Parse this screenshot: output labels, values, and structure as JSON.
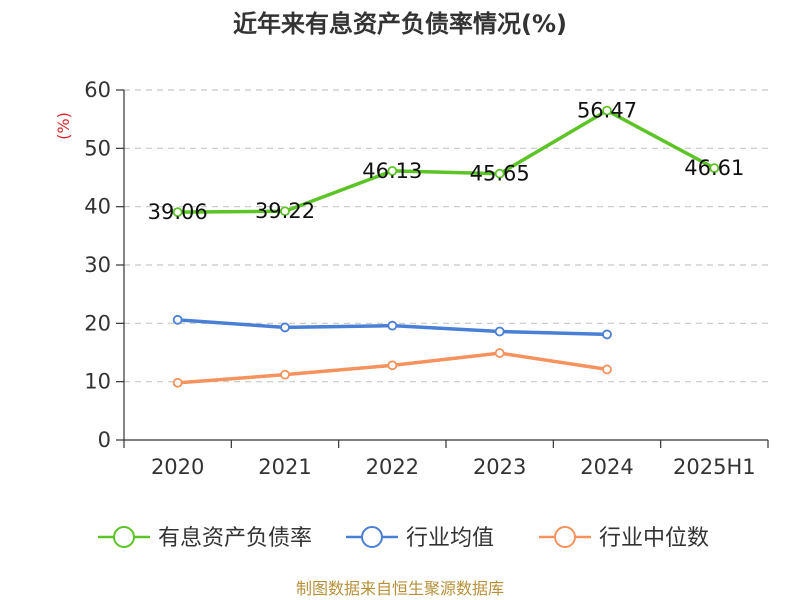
{
  "chart_data": {
    "type": "line",
    "title": "近年来有息资产负债率情况(%)",
    "ylabel": "(%)",
    "categories": [
      "2020",
      "2021",
      "2022",
      "2023",
      "2024",
      "2025H1"
    ],
    "y_ticks": [
      "0",
      "10",
      "20",
      "30",
      "40",
      "50",
      "60"
    ],
    "ylim": [
      0,
      60
    ],
    "grid": true,
    "legend_position": "bottom",
    "series": [
      {
        "name": "有息资产负债率",
        "color": "#5cc426",
        "values": [
          39.06,
          39.22,
          46.13,
          45.65,
          56.47,
          46.61
        ],
        "labels": [
          "39.06",
          "39.22",
          "46.13",
          "45.65",
          "56.47",
          "46.61"
        ]
      },
      {
        "name": "行业均值",
        "color": "#4a7fd6",
        "values": [
          20.6,
          19.3,
          19.6,
          18.6,
          18.1,
          null
        ]
      },
      {
        "name": "行业中位数",
        "color": "#f5925d",
        "values": [
          9.8,
          11.2,
          12.8,
          14.9,
          12.1,
          null
        ]
      }
    ]
  },
  "source": "制图数据来自恒生聚源数据库"
}
